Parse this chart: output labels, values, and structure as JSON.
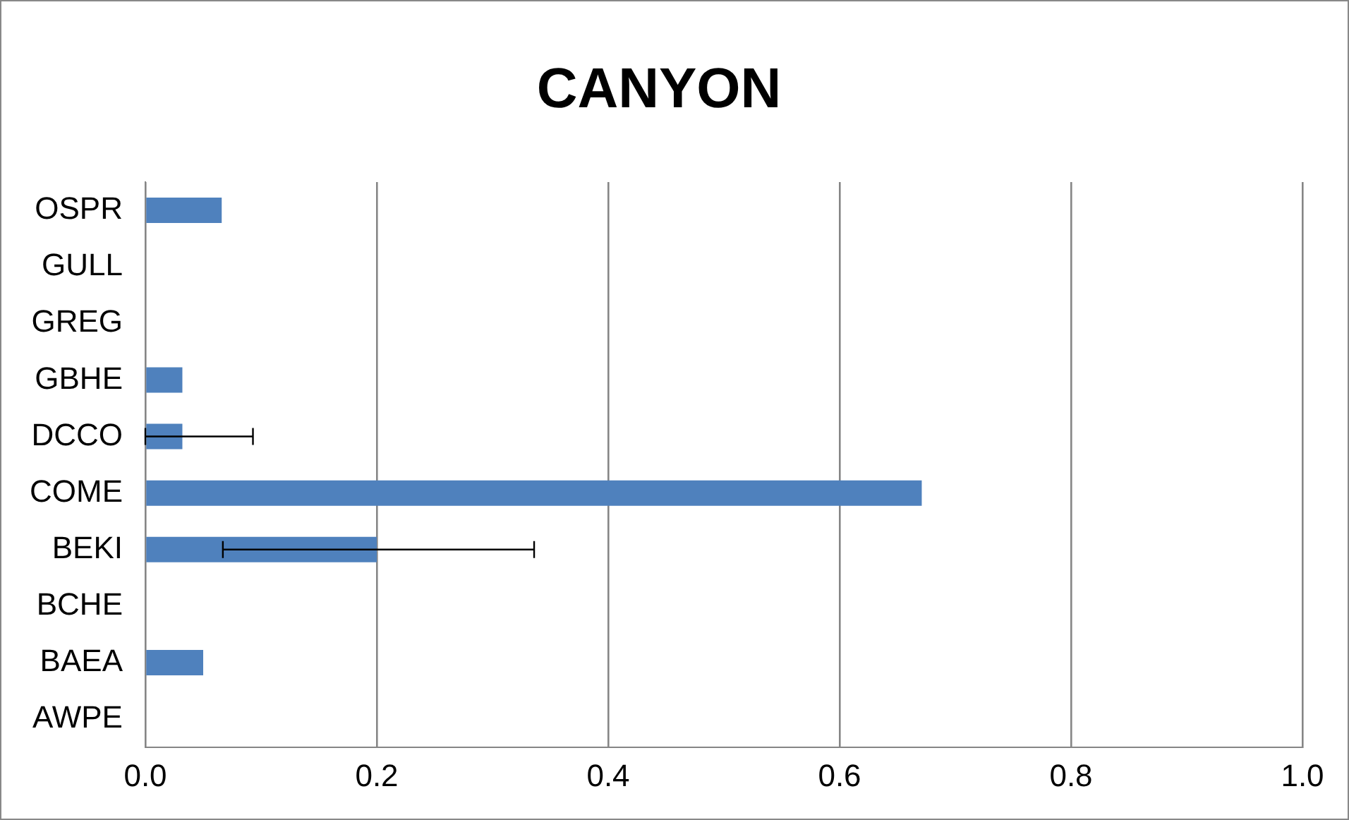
{
  "chart_data": {
    "type": "bar",
    "orientation": "horizontal",
    "title": "CANYON",
    "categories": [
      "OSPR",
      "GULL",
      "GREG",
      "GBHE",
      "DCCO",
      "COME",
      "BEKI",
      "BCHE",
      "BAEA",
      "AWPE"
    ],
    "values": [
      0.066,
      0,
      0,
      0.032,
      0.032,
      0.671,
      0.2,
      0,
      0.05,
      0
    ],
    "errors": [
      null,
      null,
      null,
      null,
      [
        0,
        0.093
      ],
      null,
      [
        0.067,
        0.336
      ],
      null,
      null,
      null
    ],
    "color": "#4f81bd",
    "xlim": [
      0,
      1
    ],
    "xticks": [
      {
        "value": 0,
        "label": "0.0"
      },
      {
        "value": 0.2,
        "label": "0.2"
      },
      {
        "value": 0.4,
        "label": "0.4"
      },
      {
        "value": 0.6,
        "label": "0.6"
      },
      {
        "value": 0.8,
        "label": "0.8"
      },
      {
        "value": 1,
        "label": "1.0"
      }
    ],
    "grid": "x",
    "legend": false
  }
}
